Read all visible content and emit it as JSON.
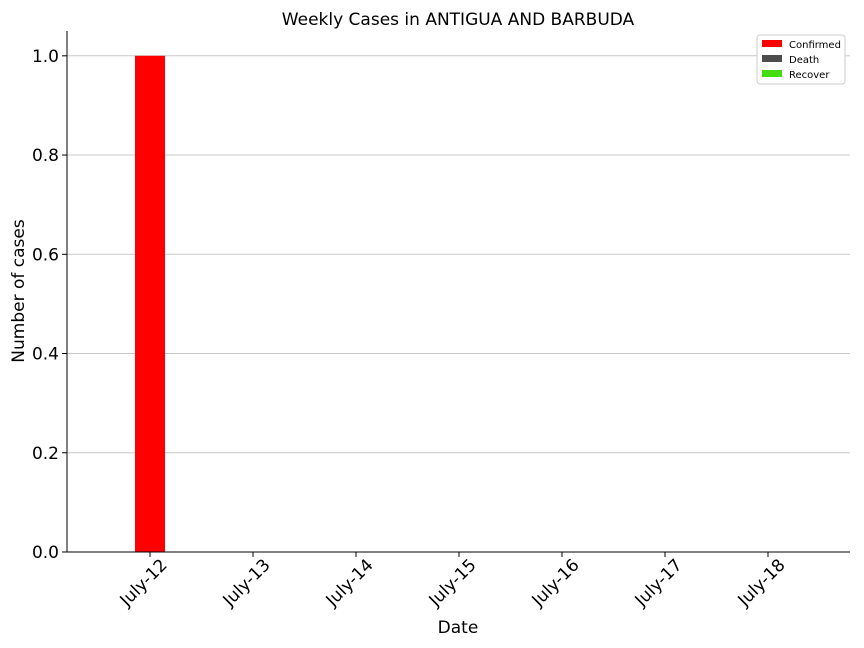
{
  "chart_data": {
    "type": "bar",
    "title": "Weekly Cases in ANTIGUA AND BARBUDA",
    "xlabel": "Date",
    "ylabel": "Number of cases",
    "categories": [
      "July-12",
      "July-13",
      "July-14",
      "July-15",
      "July-16",
      "July-17",
      "July-18"
    ],
    "series": [
      {
        "name": "Confirmed",
        "color": "#ff0000",
        "values": [
          1,
          0,
          0,
          0,
          0,
          0,
          0
        ]
      },
      {
        "name": "Death",
        "color": "#4d4d4d",
        "values": [
          0,
          0,
          0,
          0,
          0,
          0,
          0
        ]
      },
      {
        "name": "Recover",
        "color": "#44dd11",
        "values": [
          0,
          0,
          0,
          0,
          0,
          0,
          0
        ]
      }
    ],
    "ylim": [
      0,
      1.05
    ],
    "yticks": [
      "0.0",
      "0.2",
      "0.4",
      "0.6",
      "0.8",
      "1.0"
    ],
    "grid": "horizontal",
    "legend_position": "top-right"
  }
}
